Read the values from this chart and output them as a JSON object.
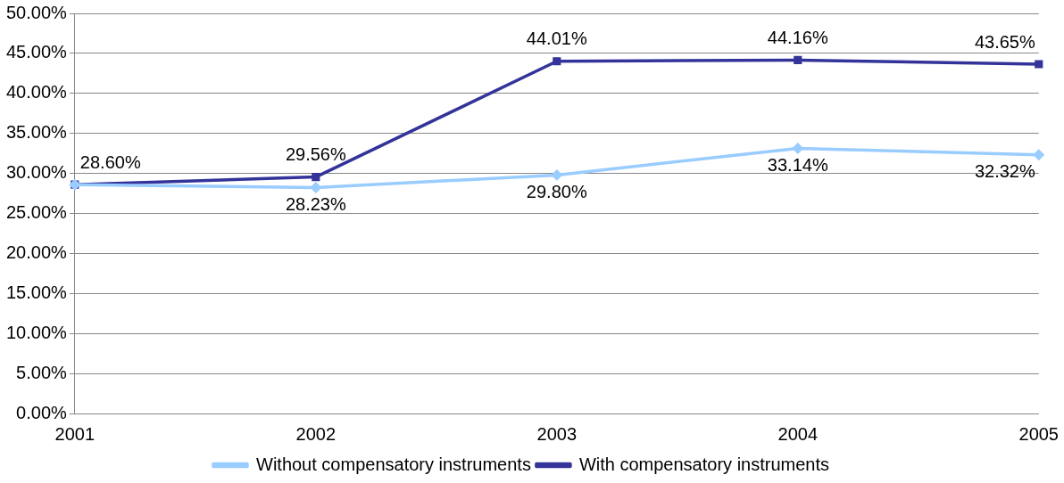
{
  "chart_data": {
    "type": "line",
    "categories": [
      "2001",
      "2002",
      "2003",
      "2004",
      "2005"
    ],
    "series": [
      {
        "name": "Without compensatory instruments",
        "color": "#99ccff",
        "marker": "diamond",
        "values": [
          28.6,
          28.23,
          29.8,
          33.14,
          32.32
        ],
        "value_labels": [
          null,
          "28.23%",
          "29.80%",
          "33.14%",
          "32.32%"
        ]
      },
      {
        "name": "With compensatory instruments",
        "color": "#333399",
        "marker": "square",
        "values": [
          28.6,
          29.56,
          44.01,
          44.16,
          43.65
        ],
        "value_labels": [
          "28.60%",
          "29.56%",
          "44.01%",
          "44.16%",
          "43.65%"
        ]
      }
    ],
    "ylim": [
      0,
      50
    ],
    "yticks": [
      {
        "value": 0,
        "label": "0.00%"
      },
      {
        "value": 5,
        "label": "5.00%"
      },
      {
        "value": 10,
        "label": "10.00%"
      },
      {
        "value": 15,
        "label": "15.00%"
      },
      {
        "value": 20,
        "label": "20.00%"
      },
      {
        "value": 25,
        "label": "25.00%"
      },
      {
        "value": 30,
        "label": "30.00%"
      },
      {
        "value": 35,
        "label": "35.00%"
      },
      {
        "value": 40,
        "label": "40.00%"
      },
      {
        "value": 45,
        "label": "45.00%"
      },
      {
        "value": 50,
        "label": "50.00%"
      }
    ],
    "grid": "y",
    "legend": "bottom",
    "line_style": "solid"
  }
}
